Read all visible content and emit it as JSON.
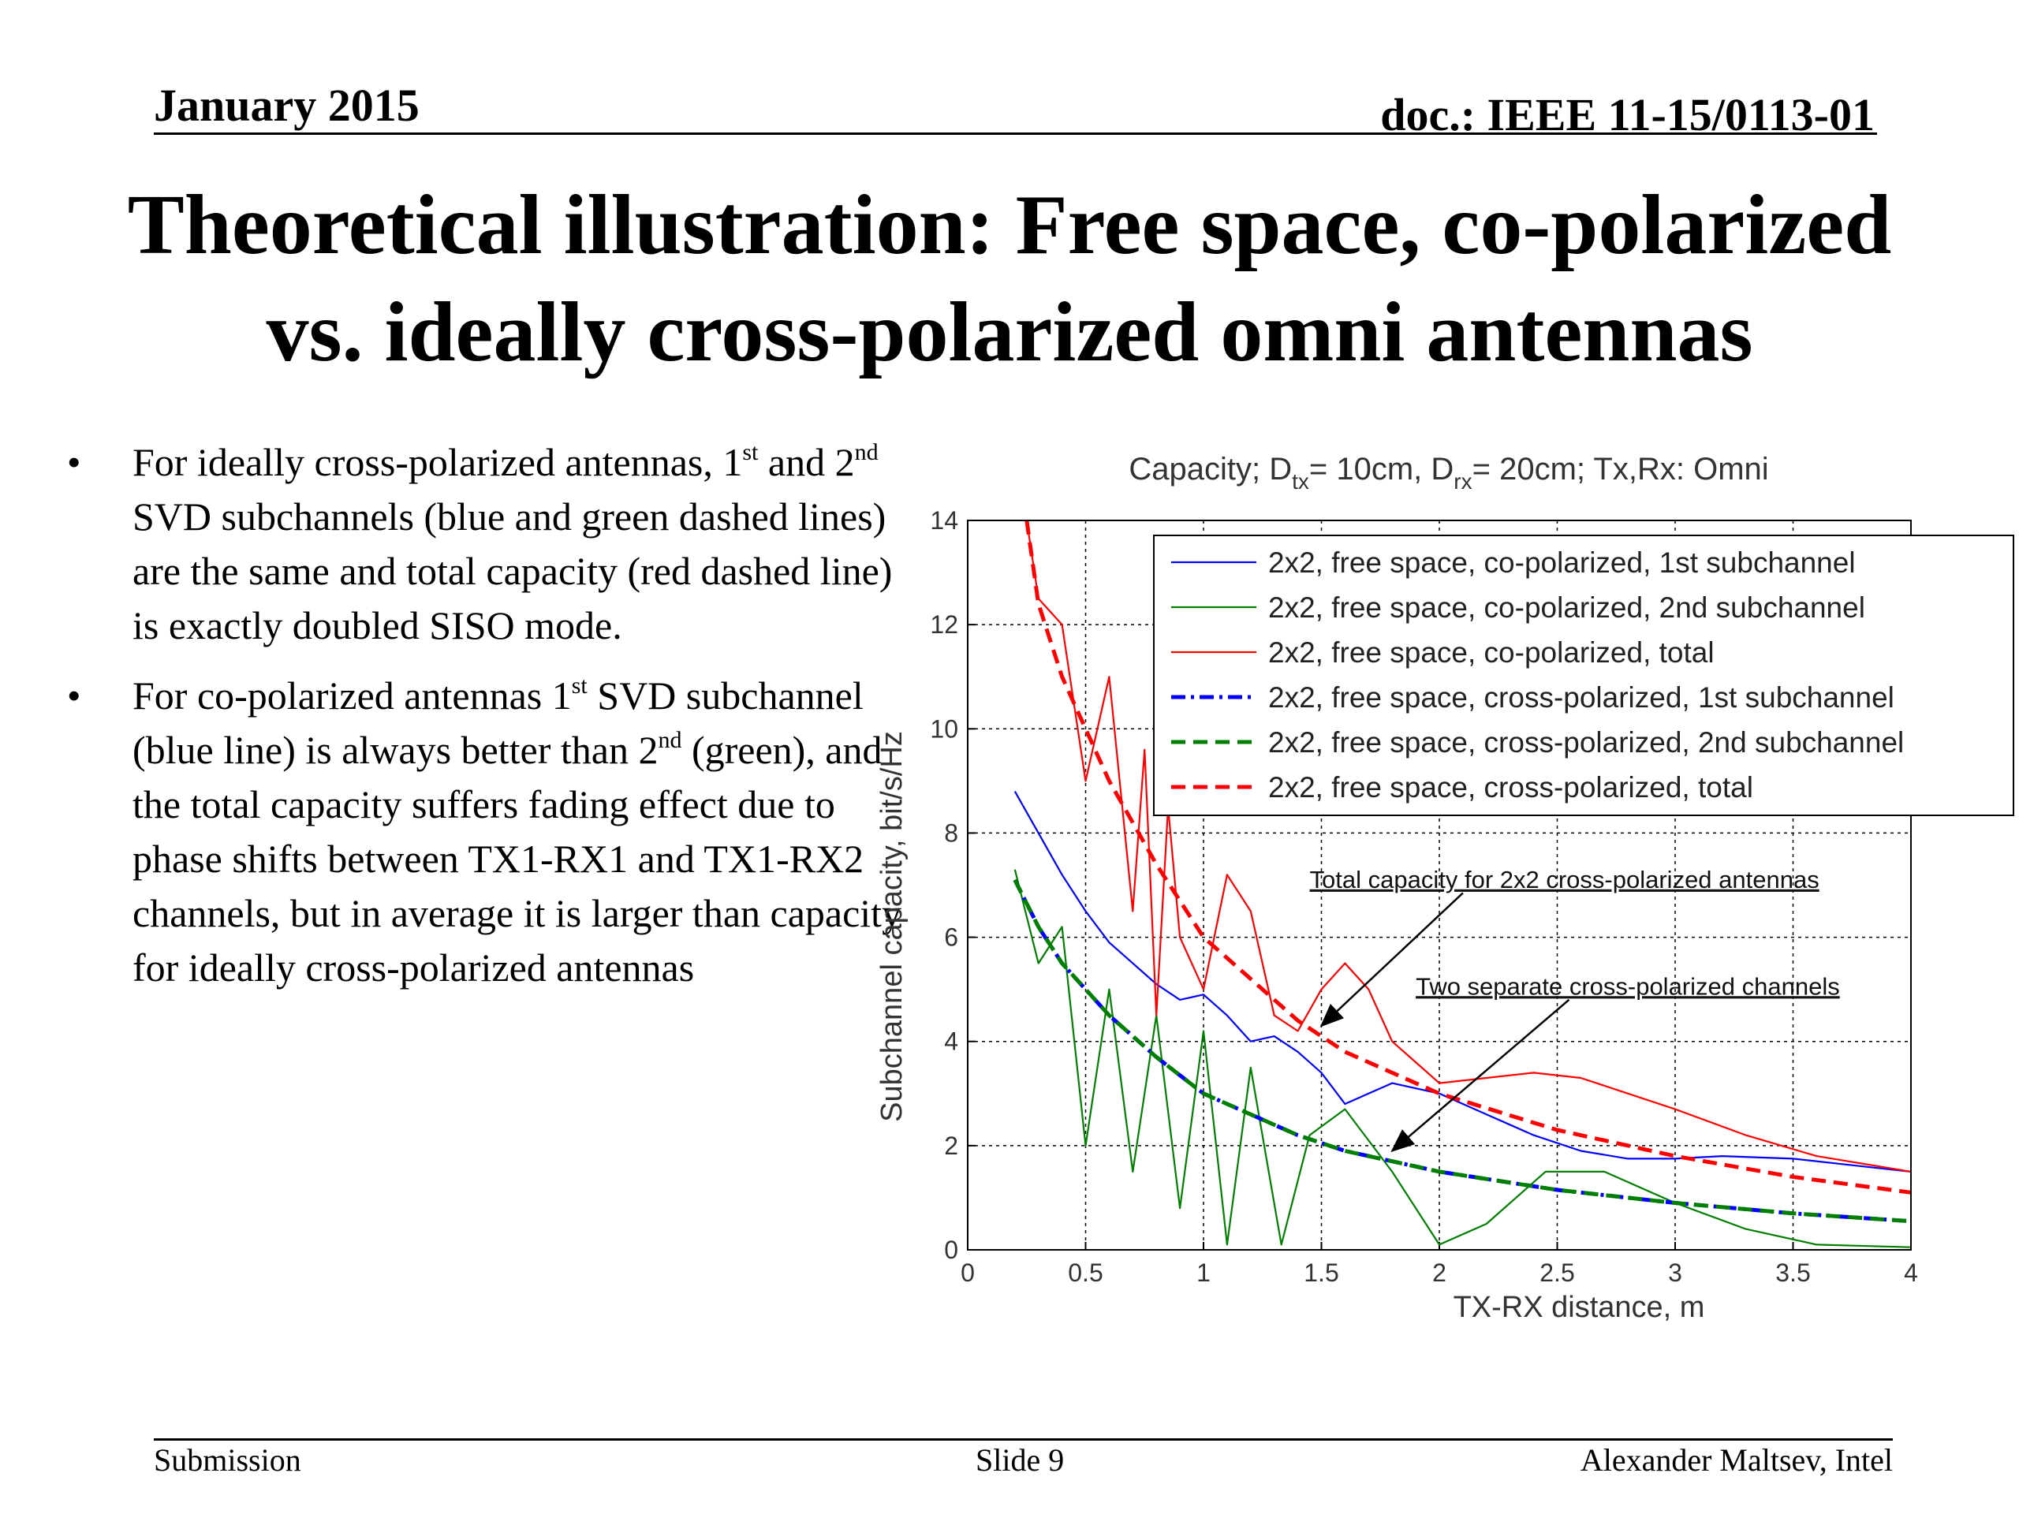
{
  "header": {
    "date": "January 2015",
    "doc": "doc.: IEEE 11-15/0113-01"
  },
  "title": {
    "line1": "Theoretical illustration: Free space, co-polarized",
    "line2": "vs. ideally cross-polarized omni antennas"
  },
  "bullets": [
    {
      "mark": "•",
      "t1": "For ideally cross-polarized antennas, 1",
      "s1": "st",
      "t2": " and 2",
      "s2": "nd",
      "t3": " SVD subchannels (blue and green dashed lines) are the same and total capacity (red dashed line) is exactly doubled SISO mode."
    },
    {
      "mark": "•",
      "t1": "For co-polarized antennas 1",
      "s1": "st",
      "t2": " SVD subchannel (blue line) is always better than 2",
      "s2": "nd",
      "t3": " (green), and the total capacity suffers fading effect due to phase shifts between TX1-RX1 and TX1-RX2 channels, but in average it is larger than capacity for ideally cross-polarized antennas"
    }
  ],
  "chart_data": {
    "type": "line",
    "title_parts": [
      "Capacity; D",
      "tx",
      "= 10cm, D",
      "rx",
      "= 20cm; Tx,Rx: Omni"
    ],
    "xlabel": "TX-RX distance, m",
    "ylabel": "Subchannel capacity, bit/s/Hz",
    "xlim": [
      0,
      4
    ],
    "ylim": [
      0,
      14
    ],
    "xticks": [
      0,
      0.5,
      1,
      1.5,
      2,
      2.5,
      3,
      3.5,
      4
    ],
    "xtick_labels": [
      "0",
      "0.5",
      "1",
      "1.5",
      "2",
      "2.5",
      "3",
      "3.5",
      "4"
    ],
    "yticks": [
      0,
      2,
      4,
      6,
      8,
      10,
      12,
      14
    ],
    "ytick_labels": [
      "0",
      "2",
      "4",
      "6",
      "8",
      "10",
      "12",
      "14"
    ],
    "grid": true,
    "legend_position": "top-right",
    "series": [
      {
        "name": "2x2, free space, co-polarized, 1st subchannel",
        "color": "#0000ff",
        "dash": "solid",
        "x": [
          0.2,
          0.3,
          0.4,
          0.5,
          0.6,
          0.7,
          0.8,
          0.9,
          1.0,
          1.1,
          1.2,
          1.3,
          1.4,
          1.5,
          1.6,
          1.7,
          1.8,
          2.0,
          2.2,
          2.4,
          2.6,
          2.8,
          3.0,
          3.2,
          3.5,
          3.8,
          4.0
        ],
        "y": [
          8.8,
          8.0,
          7.2,
          6.5,
          5.9,
          5.5,
          5.1,
          4.8,
          4.9,
          4.5,
          4.0,
          4.1,
          3.8,
          3.4,
          2.8,
          3.0,
          3.2,
          3.0,
          2.6,
          2.2,
          1.9,
          1.75,
          1.75,
          1.8,
          1.75,
          1.6,
          1.5
        ]
      },
      {
        "name": "2x2, free space, co-polarized, 2nd subchannel",
        "color": "#008000",
        "dash": "solid",
        "x": [
          0.2,
          0.3,
          0.4,
          0.5,
          0.6,
          0.7,
          0.8,
          0.9,
          1.0,
          1.1,
          1.2,
          1.33,
          1.45,
          1.6,
          1.8,
          2.0,
          2.2,
          2.45,
          2.7,
          3.0,
          3.3,
          3.6,
          4.0
        ],
        "y": [
          7.3,
          5.5,
          6.2,
          2.0,
          5.0,
          1.5,
          4.5,
          0.8,
          4.2,
          0.1,
          3.5,
          0.1,
          2.2,
          2.7,
          1.5,
          0.1,
          0.5,
          1.5,
          1.5,
          0.9,
          0.4,
          0.1,
          0.05
        ]
      },
      {
        "name": "2x2, free space, co-polarized, total",
        "color": "#ff0000",
        "dash": "solid",
        "x": [
          0.25,
          0.3,
          0.4,
          0.5,
          0.6,
          0.7,
          0.75,
          0.8,
          0.85,
          0.9,
          1.0,
          1.1,
          1.2,
          1.3,
          1.4,
          1.5,
          1.6,
          1.7,
          1.8,
          2.0,
          2.2,
          2.4,
          2.6,
          2.8,
          3.0,
          3.3,
          3.6,
          4.0
        ],
        "y": [
          14.0,
          12.5,
          12.0,
          9.0,
          11.0,
          6.5,
          9.6,
          4.5,
          8.5,
          6.0,
          5.0,
          7.2,
          6.5,
          4.5,
          4.2,
          5.0,
          5.5,
          5.0,
          4.0,
          3.2,
          3.3,
          3.4,
          3.3,
          3.0,
          2.7,
          2.2,
          1.8,
          1.5
        ]
      },
      {
        "name": "2x2, free space, cross-polarized, 1st subchannel",
        "color": "#0000ff",
        "dash": "dashdot",
        "x": [
          0.2,
          0.3,
          0.4,
          0.5,
          0.6,
          0.8,
          1.0,
          1.2,
          1.4,
          1.6,
          1.8,
          2.0,
          2.5,
          3.0,
          3.5,
          4.0
        ],
        "y": [
          7.1,
          6.2,
          5.5,
          5.0,
          4.5,
          3.7,
          3.0,
          2.6,
          2.2,
          1.9,
          1.7,
          1.5,
          1.15,
          0.9,
          0.7,
          0.55
        ]
      },
      {
        "name": "2x2, free space, cross-polarized, 2nd subchannel",
        "color": "#008000",
        "dash": "dashed",
        "x": [
          0.2,
          0.3,
          0.4,
          0.5,
          0.6,
          0.8,
          1.0,
          1.2,
          1.4,
          1.6,
          1.8,
          2.0,
          2.5,
          3.0,
          3.5,
          4.0
        ],
        "y": [
          7.1,
          6.2,
          5.5,
          5.0,
          4.5,
          3.7,
          3.0,
          2.6,
          2.2,
          1.9,
          1.7,
          1.5,
          1.15,
          0.9,
          0.7,
          0.55
        ]
      },
      {
        "name": "2x2, free space, cross-polarized, total",
        "color": "#ff0000",
        "dash": "dashed",
        "x": [
          0.25,
          0.3,
          0.4,
          0.5,
          0.6,
          0.8,
          1.0,
          1.2,
          1.4,
          1.6,
          1.8,
          2.0,
          2.5,
          3.0,
          3.5,
          4.0
        ],
        "y": [
          14.0,
          12.4,
          11.0,
          10.0,
          9.0,
          7.4,
          6.0,
          5.2,
          4.4,
          3.8,
          3.4,
          3.0,
          2.3,
          1.8,
          1.4,
          1.1
        ]
      }
    ],
    "annotations": [
      {
        "text": "Total capacity for 2x2 cross-polarized antennas",
        "x": 1.45,
        "y": 6.95,
        "arrow_to": [
          1.5,
          4.3
        ],
        "arrow_from": [
          2.1,
          6.85
        ]
      },
      {
        "text": "Two separate cross-polarized channels",
        "x": 1.9,
        "y": 4.9,
        "arrow_to": [
          1.8,
          1.9
        ],
        "arrow_from": [
          2.55,
          4.8
        ]
      }
    ]
  },
  "footer": {
    "left": "Submission",
    "center": "Slide 9",
    "right": "Alexander Maltsev, Intel"
  }
}
